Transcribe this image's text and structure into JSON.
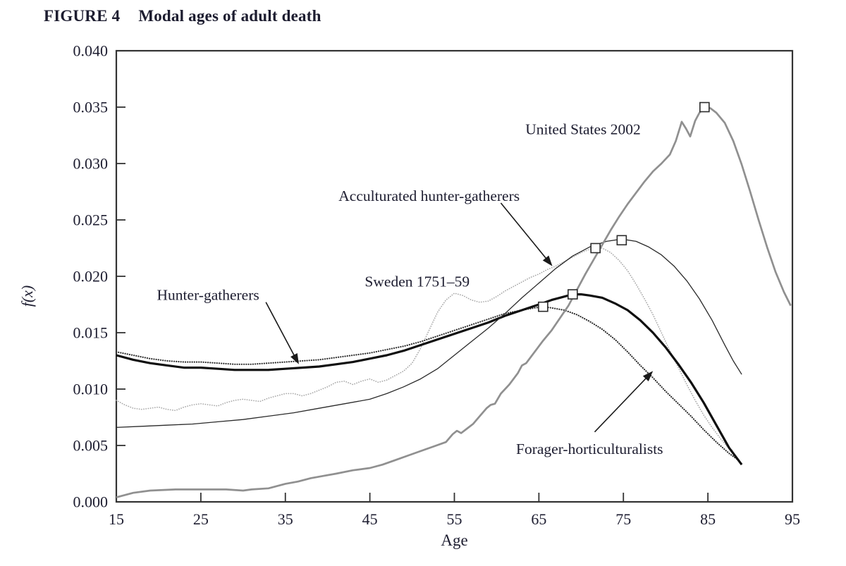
{
  "figure": {
    "label": "FIGURE 4",
    "title": "Modal ages of adult death"
  },
  "chart_data": {
    "type": "line",
    "title": "Modal ages of adult death",
    "xlabel": "Age",
    "ylabel": "f(x)",
    "xlim": [
      15,
      95
    ],
    "ylim": [
      0,
      0.04
    ],
    "xticks": [
      15,
      25,
      35,
      45,
      55,
      65,
      75,
      85,
      95
    ],
    "yticks": [
      0.0,
      0.005,
      0.01,
      0.015,
      0.02,
      0.025,
      0.03,
      0.035,
      0.04
    ],
    "grid": false,
    "legend_position": "annotated-inline",
    "ink_color": "#1d1d30",
    "axis_color": "#333333",
    "series": [
      {
        "name": "Sweden 1751–59",
        "style": "dotted",
        "color": "#a8a8a8",
        "width": 1.7,
        "modal_point": [
          71.7,
          0.0225
        ],
        "points": [
          [
            15,
            0.009
          ],
          [
            16,
            0.0086
          ],
          [
            17,
            0.0083
          ],
          [
            18,
            0.0082
          ],
          [
            19,
            0.0083
          ],
          [
            20,
            0.0084
          ],
          [
            21,
            0.0082
          ],
          [
            22,
            0.0081
          ],
          [
            23,
            0.0084
          ],
          [
            24,
            0.0086
          ],
          [
            25,
            0.0087
          ],
          [
            26,
            0.0086
          ],
          [
            27,
            0.0085
          ],
          [
            28,
            0.0088
          ],
          [
            29,
            0.009
          ],
          [
            30,
            0.0091
          ],
          [
            31,
            0.009
          ],
          [
            32,
            0.0089
          ],
          [
            33,
            0.0092
          ],
          [
            34,
            0.0094
          ],
          [
            35,
            0.0096
          ],
          [
            36,
            0.0096
          ],
          [
            37,
            0.0094
          ],
          [
            38,
            0.0096
          ],
          [
            39,
            0.0099
          ],
          [
            40,
            0.0102
          ],
          [
            41,
            0.0106
          ],
          [
            42,
            0.0107
          ],
          [
            43,
            0.0104
          ],
          [
            44,
            0.0107
          ],
          [
            45,
            0.0109
          ],
          [
            46,
            0.0106
          ],
          [
            47,
            0.0108
          ],
          [
            48,
            0.0112
          ],
          [
            49,
            0.0116
          ],
          [
            50,
            0.0123
          ],
          [
            51,
            0.0136
          ],
          [
            52,
            0.0152
          ],
          [
            53,
            0.0168
          ],
          [
            54,
            0.0179
          ],
          [
            55,
            0.0185
          ],
          [
            56,
            0.0183
          ],
          [
            57,
            0.0179
          ],
          [
            58,
            0.0177
          ],
          [
            59,
            0.0178
          ],
          [
            60,
            0.0182
          ],
          [
            61,
            0.0187
          ],
          [
            62,
            0.0191
          ],
          [
            63,
            0.0195
          ],
          [
            64,
            0.0199
          ],
          [
            65,
            0.0202
          ],
          [
            66,
            0.0206
          ],
          [
            67,
            0.0209
          ],
          [
            68,
            0.0213
          ],
          [
            69,
            0.0217
          ],
          [
            70,
            0.0221
          ],
          [
            71,
            0.0224
          ],
          [
            71.7,
            0.0225
          ],
          [
            72.5,
            0.0225
          ],
          [
            73.5,
            0.0221
          ],
          [
            74.5,
            0.0214
          ],
          [
            75.5,
            0.0205
          ],
          [
            76.5,
            0.0193
          ],
          [
            77.5,
            0.018
          ],
          [
            78.5,
            0.0166
          ],
          [
            79.5,
            0.015
          ],
          [
            80.5,
            0.0134
          ],
          [
            81.5,
            0.0119
          ],
          [
            82.5,
            0.0104
          ],
          [
            83.5,
            0.009
          ],
          [
            84.5,
            0.0077
          ],
          [
            85.5,
            0.0066
          ],
          [
            86.5,
            0.0056
          ],
          [
            87.3,
            0.0049
          ],
          [
            88,
            0.0045
          ]
        ]
      },
      {
        "name": "Forager-horticulturalists",
        "style": "dotted",
        "color": "#2f2f2f",
        "width": 2.2,
        "modal_point": [
          65.5,
          0.0173
        ],
        "points": [
          [
            15,
            0.0133
          ],
          [
            17,
            0.013
          ],
          [
            19,
            0.0127
          ],
          [
            21,
            0.0125
          ],
          [
            23,
            0.0124
          ],
          [
            25,
            0.0124
          ],
          [
            27,
            0.0123
          ],
          [
            29,
            0.0122
          ],
          [
            31,
            0.0122
          ],
          [
            33,
            0.0123
          ],
          [
            35,
            0.0124
          ],
          [
            37,
            0.0125
          ],
          [
            39,
            0.0126
          ],
          [
            41,
            0.0128
          ],
          [
            43,
            0.013
          ],
          [
            45,
            0.0132
          ],
          [
            47,
            0.0135
          ],
          [
            49,
            0.0138
          ],
          [
            51,
            0.0142
          ],
          [
            53,
            0.0147
          ],
          [
            55,
            0.0152
          ],
          [
            57,
            0.0157
          ],
          [
            59,
            0.0162
          ],
          [
            61,
            0.0167
          ],
          [
            63,
            0.017
          ],
          [
            64.5,
            0.0172
          ],
          [
            65.5,
            0.0173
          ],
          [
            66.5,
            0.0172
          ],
          [
            68,
            0.017
          ],
          [
            69.5,
            0.0166
          ],
          [
            71,
            0.016
          ],
          [
            72.5,
            0.0153
          ],
          [
            74,
            0.0144
          ],
          [
            75.5,
            0.0133
          ],
          [
            77,
            0.0121
          ],
          [
            78.5,
            0.011
          ],
          [
            80,
            0.0098
          ],
          [
            81.5,
            0.0087
          ],
          [
            83,
            0.0076
          ],
          [
            84.5,
            0.0064
          ],
          [
            86,
            0.0053
          ],
          [
            87.5,
            0.0043
          ],
          [
            88.8,
            0.0036
          ]
        ]
      },
      {
        "name": "Hunter-gatherers",
        "style": "solid",
        "color": "#0f0f0f",
        "width": 3.2,
        "modal_point": [
          69,
          0.0184
        ],
        "points": [
          [
            15,
            0.013
          ],
          [
            17,
            0.0126
          ],
          [
            19,
            0.0123
          ],
          [
            21,
            0.0121
          ],
          [
            23,
            0.0119
          ],
          [
            25,
            0.0119
          ],
          [
            27,
            0.0118
          ],
          [
            29,
            0.0117
          ],
          [
            31,
            0.0117
          ],
          [
            33,
            0.0117
          ],
          [
            35,
            0.0118
          ],
          [
            37,
            0.0119
          ],
          [
            39,
            0.012
          ],
          [
            41,
            0.0122
          ],
          [
            43,
            0.0124
          ],
          [
            45,
            0.0127
          ],
          [
            47,
            0.013
          ],
          [
            49,
            0.0134
          ],
          [
            51,
            0.0139
          ],
          [
            53,
            0.0144
          ],
          [
            55,
            0.0149
          ],
          [
            57,
            0.0154
          ],
          [
            59,
            0.0159
          ],
          [
            61,
            0.0165
          ],
          [
            63,
            0.017
          ],
          [
            65,
            0.0175
          ],
          [
            66.5,
            0.0179
          ],
          [
            68,
            0.0182
          ],
          [
            69,
            0.0184
          ],
          [
            70,
            0.0184
          ],
          [
            71,
            0.0183
          ],
          [
            72.5,
            0.0181
          ],
          [
            74,
            0.0176
          ],
          [
            75.5,
            0.017
          ],
          [
            77,
            0.0161
          ],
          [
            78.5,
            0.015
          ],
          [
            80,
            0.0137
          ],
          [
            81.5,
            0.0122
          ],
          [
            83,
            0.0106
          ],
          [
            84.5,
            0.0088
          ],
          [
            86,
            0.0068
          ],
          [
            87.5,
            0.0048
          ],
          [
            89,
            0.0033
          ]
        ]
      },
      {
        "name": "Acculturated hunter-gatherers",
        "style": "solid",
        "color": "#2a2a2a",
        "width": 1.3,
        "modal_point": [
          74.8,
          0.0232
        ],
        "points": [
          [
            15,
            0.0066
          ],
          [
            18,
            0.0067
          ],
          [
            21,
            0.0068
          ],
          [
            24,
            0.0069
          ],
          [
            27,
            0.0071
          ],
          [
            30,
            0.0073
          ],
          [
            33,
            0.0076
          ],
          [
            36,
            0.0079
          ],
          [
            39,
            0.0083
          ],
          [
            42,
            0.0087
          ],
          [
            45,
            0.0091
          ],
          [
            47,
            0.0096
          ],
          [
            49,
            0.0102
          ],
          [
            51,
            0.0109
          ],
          [
            53,
            0.0118
          ],
          [
            55,
            0.013
          ],
          [
            57,
            0.0142
          ],
          [
            59,
            0.0154
          ],
          [
            61,
            0.0167
          ],
          [
            63,
            0.0181
          ],
          [
            65,
            0.0194
          ],
          [
            67,
            0.0207
          ],
          [
            69,
            0.0218
          ],
          [
            71,
            0.0226
          ],
          [
            73,
            0.0231
          ],
          [
            74.8,
            0.0233
          ],
          [
            76.5,
            0.0231
          ],
          [
            78,
            0.0226
          ],
          [
            79.5,
            0.0219
          ],
          [
            81,
            0.0209
          ],
          [
            82.5,
            0.0196
          ],
          [
            84,
            0.018
          ],
          [
            85.5,
            0.0161
          ],
          [
            87,
            0.0139
          ],
          [
            88,
            0.0125
          ],
          [
            89,
            0.0113
          ]
        ]
      },
      {
        "name": "United States 2002",
        "style": "solid",
        "color": "#909090",
        "width": 2.7,
        "modal_point": [
          84.6,
          0.035
        ],
        "points": [
          [
            15,
            0.0004
          ],
          [
            17,
            0.0008
          ],
          [
            19,
            0.001
          ],
          [
            22,
            0.0011
          ],
          [
            25,
            0.0011
          ],
          [
            28,
            0.0011
          ],
          [
            30,
            0.001
          ],
          [
            31,
            0.0011
          ],
          [
            33,
            0.0012
          ],
          [
            35,
            0.0016
          ],
          [
            36.5,
            0.0018
          ],
          [
            38,
            0.0021
          ],
          [
            39.5,
            0.0023
          ],
          [
            41,
            0.0025
          ],
          [
            43,
            0.0028
          ],
          [
            45,
            0.003
          ],
          [
            46.5,
            0.0033
          ],
          [
            48,
            0.0037
          ],
          [
            49.5,
            0.0041
          ],
          [
            51,
            0.0045
          ],
          [
            52.5,
            0.0049
          ],
          [
            54,
            0.0053
          ],
          [
            54.8,
            0.006
          ],
          [
            55.3,
            0.0063
          ],
          [
            55.8,
            0.0061
          ],
          [
            56.5,
            0.0065
          ],
          [
            57.2,
            0.0069
          ],
          [
            58,
            0.0076
          ],
          [
            58.8,
            0.0083
          ],
          [
            59.3,
            0.0086
          ],
          [
            59.8,
            0.0087
          ],
          [
            60.5,
            0.0096
          ],
          [
            61.5,
            0.0104
          ],
          [
            62.5,
            0.0114
          ],
          [
            63,
            0.0121
          ],
          [
            63.5,
            0.0123
          ],
          [
            64.5,
            0.0133
          ],
          [
            65.5,
            0.0143
          ],
          [
            66.5,
            0.0152
          ],
          [
            67.5,
            0.0163
          ],
          [
            68.5,
            0.0174
          ],
          [
            69.5,
            0.0188
          ],
          [
            70.5,
            0.0202
          ],
          [
            71.5,
            0.0215
          ],
          [
            72.5,
            0.0228
          ],
          [
            73.5,
            0.0241
          ],
          [
            74.5,
            0.0253
          ],
          [
            75.5,
            0.0264
          ],
          [
            76.5,
            0.0274
          ],
          [
            77.5,
            0.0284
          ],
          [
            78.5,
            0.0293
          ],
          [
            79.5,
            0.03
          ],
          [
            80.5,
            0.0308
          ],
          [
            81.2,
            0.032
          ],
          [
            81.9,
            0.0337
          ],
          [
            82.4,
            0.0331
          ],
          [
            82.9,
            0.0324
          ],
          [
            83.5,
            0.0338
          ],
          [
            84,
            0.0345
          ],
          [
            84.6,
            0.035
          ],
          [
            85.3,
            0.0349
          ],
          [
            86,
            0.0345
          ],
          [
            87,
            0.0336
          ],
          [
            88,
            0.032
          ],
          [
            89,
            0.0299
          ],
          [
            90,
            0.0275
          ],
          [
            91,
            0.025
          ],
          [
            92,
            0.0226
          ],
          [
            93,
            0.0204
          ],
          [
            94,
            0.0186
          ],
          [
            94.8,
            0.0174
          ]
        ]
      }
    ],
    "annotations": [
      {
        "text": "United States 2002",
        "x": 63.4,
        "y": 0.0326,
        "anchor": "start",
        "arrow": null
      },
      {
        "text": "Acculturated hunter-gatherers",
        "x": 41.3,
        "y": 0.0267,
        "anchor": "start",
        "arrow": {
          "from": [
            60.5,
            0.0265
          ],
          "to": [
            66.6,
            0.0209
          ]
        }
      },
      {
        "text": "Sweden 1751–59",
        "x": 44.4,
        "y": 0.0191,
        "anchor": "start",
        "arrow": null
      },
      {
        "text": "Hunter-gatherers",
        "x": 19.8,
        "y": 0.0179,
        "anchor": "start",
        "arrow": {
          "from": [
            32.7,
            0.0177
          ],
          "to": [
            36.6,
            0.0122
          ]
        }
      },
      {
        "text": "Forager-horticulturalists",
        "x": 62.3,
        "y": 0.00425,
        "anchor": "start",
        "arrow": {
          "from": [
            71.6,
            0.0062
          ],
          "to": [
            78.5,
            0.0116
          ]
        }
      }
    ]
  }
}
